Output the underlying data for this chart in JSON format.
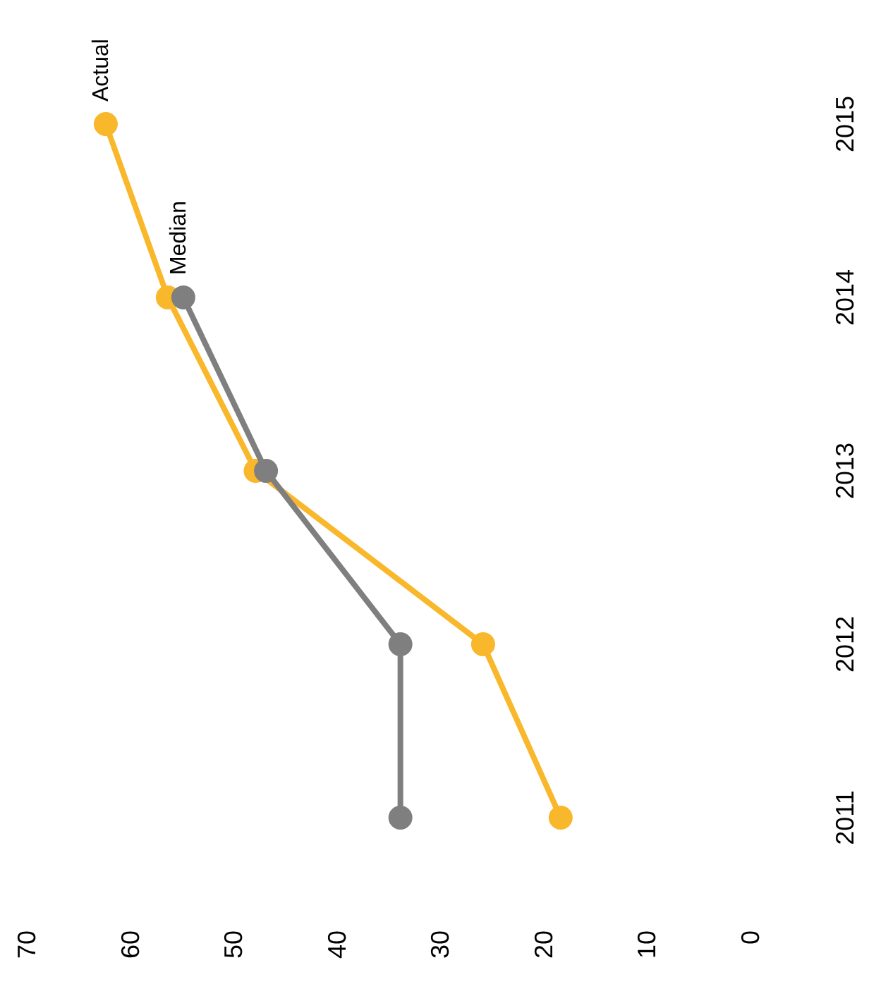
{
  "chart_data": {
    "type": "line",
    "orientation": "horizontal",
    "categories": [
      "2015",
      "2014",
      "2013",
      "2012",
      "2011"
    ],
    "series": [
      {
        "name": "Median",
        "color": "#7f7f7f",
        "values": [
          null,
          55,
          47,
          34,
          34
        ]
      },
      {
        "name": "Actual",
        "color": "#f9b72b",
        "values": [
          62.5,
          56.5,
          48,
          26,
          18.5
        ]
      }
    ],
    "xlim": [
      70,
      0
    ],
    "xticks": [
      70,
      60,
      50,
      40,
      30,
      20,
      10,
      0
    ],
    "grid": false,
    "legend": false,
    "marker": "circle",
    "line_style": "solid"
  }
}
